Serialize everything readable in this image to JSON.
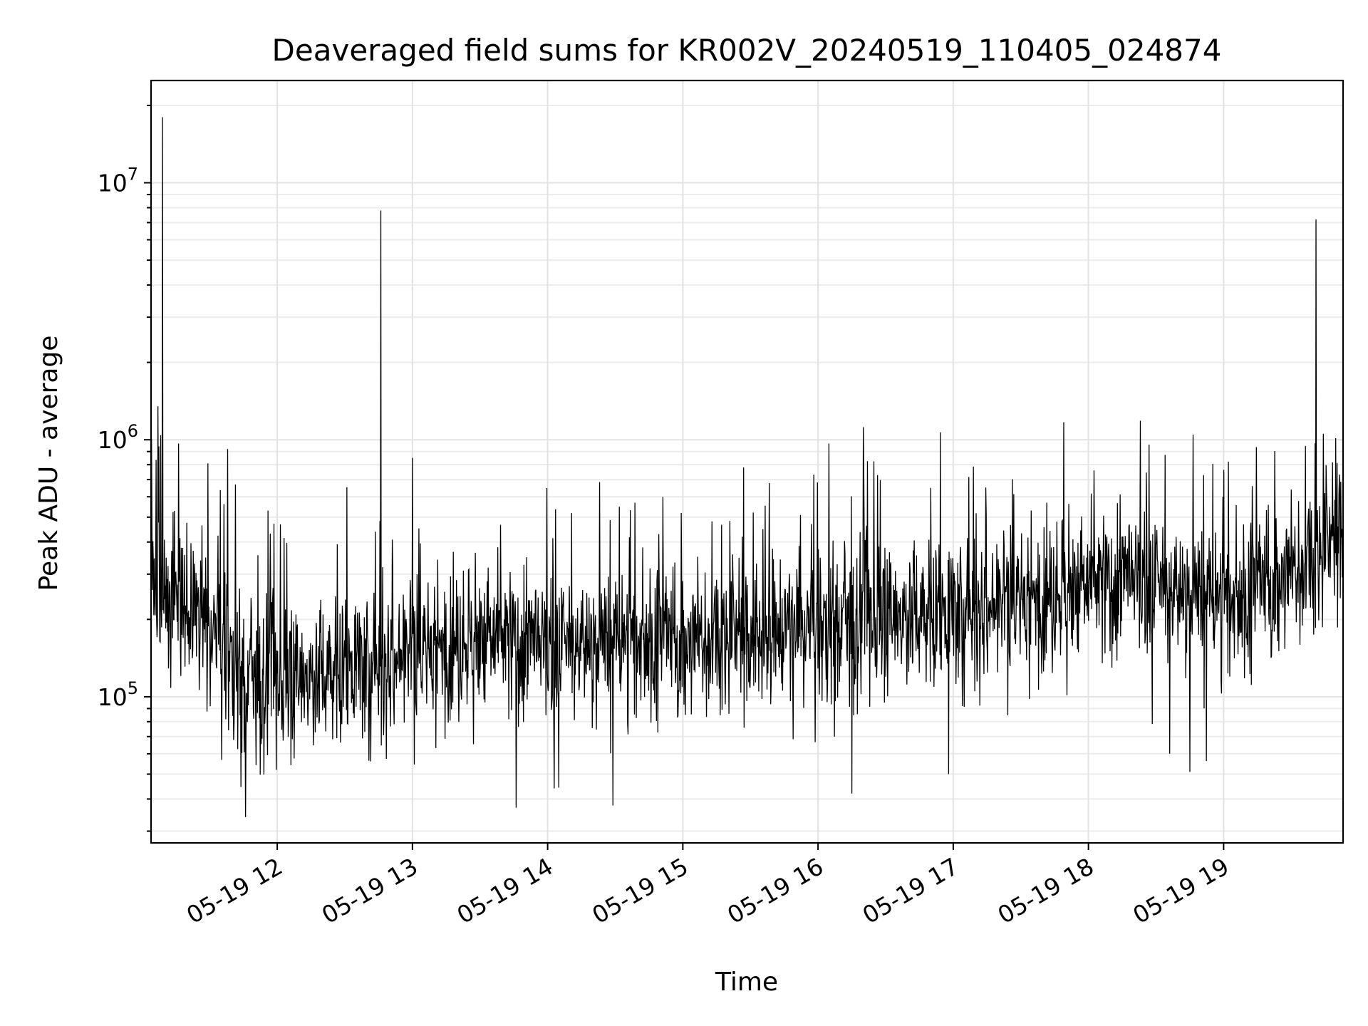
{
  "chart_data": {
    "type": "line",
    "title": "Deaveraged field sums for KR002V_20240519_110405_024874",
    "xlabel": "Time",
    "ylabel": "Peak ADU - average",
    "x_tick_labels": [
      "05-19 12",
      "05-19 13",
      "05-19 14",
      "05-19 15",
      "05-19 16",
      "05-19 17",
      "05-19 18",
      "05-19 19"
    ],
    "y_tick_labels": [
      {
        "base": "10",
        "exp": "5",
        "value": 100000
      },
      {
        "base": "10",
        "exp": "6",
        "value": 1000000
      },
      {
        "base": "10",
        "exp": "7",
        "value": 10000000
      }
    ],
    "xlim": [
      "2024-05-19 11:04",
      "2024-05-19 19:53"
    ],
    "ylim": [
      27000,
      25000000
    ],
    "y_scale": "log",
    "grid": true,
    "line_color": "#000000",
    "series": [
      {
        "x": [
          "2024-05-19 11:04",
          "2024-05-19 11:15",
          "2024-05-19 11:30",
          "2024-05-19 11:45",
          "2024-05-19 12:00",
          "2024-05-19 12:15",
          "2024-05-19 12:30",
          "2024-05-19 12:45",
          "2024-05-19 13:00",
          "2024-05-19 13:15",
          "2024-05-19 13:30",
          "2024-05-19 13:45",
          "2024-05-19 14:00",
          "2024-05-19 14:15",
          "2024-05-19 14:30",
          "2024-05-19 14:45",
          "2024-05-19 15:00",
          "2024-05-19 15:15",
          "2024-05-19 15:30",
          "2024-05-19 15:45",
          "2024-05-19 16:00",
          "2024-05-19 16:15",
          "2024-05-19 16:30",
          "2024-05-19 16:45",
          "2024-05-19 17:00",
          "2024-05-19 17:15",
          "2024-05-19 17:30",
          "2024-05-19 17:45",
          "2024-05-19 18:00",
          "2024-05-19 18:15",
          "2024-05-19 18:30",
          "2024-05-19 18:45",
          "2024-05-19 19:00",
          "2024-05-19 19:15",
          "2024-05-19 19:30",
          "2024-05-19 19:45",
          "2024-05-19 19:53"
        ],
        "values": [
          320000,
          230000,
          190000,
          120000,
          115000,
          120000,
          130000,
          135000,
          150000,
          160000,
          170000,
          165000,
          150000,
          160000,
          165000,
          170000,
          160000,
          170000,
          175000,
          180000,
          190000,
          200000,
          205000,
          210000,
          215000,
          225000,
          240000,
          255000,
          270000,
          280000,
          270000,
          250000,
          240000,
          260000,
          300000,
          380000,
          450000
        ]
      }
    ],
    "spikes": [
      {
        "x": "2024-05-19 11:09",
        "value": 18000000
      },
      {
        "x": "2024-05-19 11:07",
        "value": 1350000
      },
      {
        "x": "2024-05-19 11:38",
        "value": 920000
      },
      {
        "x": "2024-05-19 11:56",
        "value": 530000
      },
      {
        "x": "2024-05-19 12:46",
        "value": 7800000
      },
      {
        "x": "2024-05-19 13:00",
        "value": 850000
      },
      {
        "x": "2024-05-19 15:27",
        "value": 780000
      },
      {
        "x": "2024-05-19 16:20",
        "value": 1120000
      },
      {
        "x": "2024-05-19 17:49",
        "value": 1170000
      },
      {
        "x": "2024-05-19 19:41",
        "value": 7200000
      }
    ],
    "dips": [
      {
        "x": "2024-05-19 11:46",
        "value": 34000
      },
      {
        "x": "2024-05-19 13:46",
        "value": 37000
      },
      {
        "x": "2024-05-19 14:03",
        "value": 44000
      },
      {
        "x": "2024-05-19 16:15",
        "value": 42000
      },
      {
        "x": "2024-05-19 16:58",
        "value": 50000
      },
      {
        "x": "2024-05-19 18:36",
        "value": 60000
      },
      {
        "x": "2024-05-19 18:45",
        "value": 51000
      }
    ]
  }
}
